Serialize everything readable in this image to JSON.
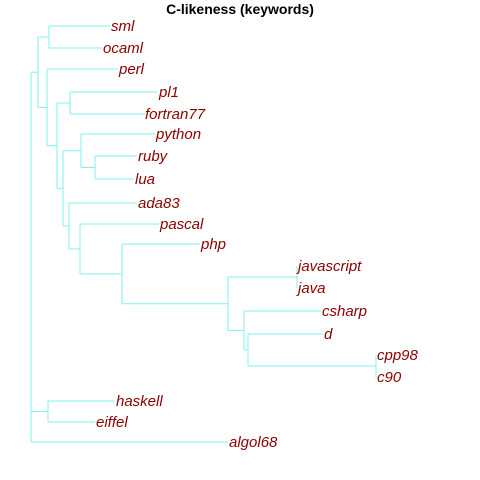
{
  "title": "C-likeness (keywords)",
  "colors": {
    "branch": "#80f0f0",
    "label": "#8b0000"
  },
  "dendrogram": {
    "leaves": [
      "sml",
      "ocaml",
      "perl",
      "pl1",
      "fortran77",
      "python",
      "ruby",
      "lua",
      "ada83",
      "pascal",
      "php",
      "javascript",
      "java",
      "csharp",
      "d",
      "cpp98",
      "c90",
      "haskell",
      "eiffel",
      "algol68"
    ]
  }
}
